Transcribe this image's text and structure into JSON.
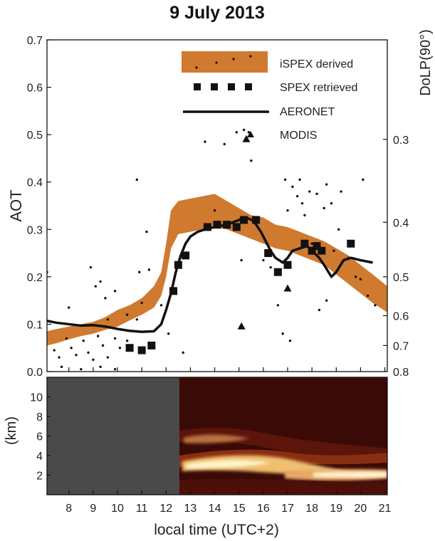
{
  "chart_data": {
    "title": "9 July 2013",
    "top_panel": {
      "type": "scatter",
      "xlim": [
        7.1,
        21.1
      ],
      "ylim": [
        0.0,
        0.7
      ],
      "ylabel_left": "AOT",
      "ylabel_right": "DoLP(90°)",
      "left_ticks": [
        0.0,
        0.1,
        0.2,
        0.3,
        0.4,
        0.5,
        0.6,
        0.7
      ],
      "left_tick_labels": [
        "0.0",
        "0.1",
        "0.2",
        "0.3",
        "0.4",
        "0.5",
        "0.6",
        "0.7"
      ],
      "right_ticks": [
        {
          "label": "0.3",
          "aot": 0.49
        },
        {
          "label": "0.4",
          "aot": 0.315
        },
        {
          "label": "0.5",
          "aot": 0.2
        },
        {
          "label": "0.6",
          "aot": 0.118
        },
        {
          "label": "0.7",
          "aot": 0.055
        },
        {
          "label": "0.8",
          "aot": 0.0
        }
      ],
      "legend": [
        {
          "label": "iSPEX derived",
          "style": "band"
        },
        {
          "label": "SPEX retrieved",
          "style": "square"
        },
        {
          "label": "AERONET",
          "style": "line"
        },
        {
          "label": "MODIS",
          "style": "triangle"
        }
      ],
      "legend_position": "top-right",
      "ispex_band": {
        "color": "#d07a30",
        "x": [
          7.1,
          7.5,
          8.0,
          8.5,
          9.0,
          9.5,
          10.0,
          10.5,
          11.0,
          11.5,
          11.8,
          12.0,
          12.2,
          12.5,
          13.0,
          13.5,
          14.0,
          14.5,
          15.0,
          15.5,
          16.0,
          16.5,
          17.0,
          17.5,
          18.0,
          18.5,
          19.0,
          19.5,
          20.0,
          20.5,
          21.1
        ],
        "upper": [
          0.085,
          0.09,
          0.095,
          0.1,
          0.105,
          0.115,
          0.13,
          0.14,
          0.155,
          0.18,
          0.21,
          0.27,
          0.34,
          0.36,
          0.365,
          0.37,
          0.375,
          0.36,
          0.345,
          0.33,
          0.325,
          0.31,
          0.305,
          0.295,
          0.285,
          0.275,
          0.26,
          0.245,
          0.225,
          0.205,
          0.18
        ],
        "lower": [
          0.055,
          0.06,
          0.068,
          0.075,
          0.08,
          0.088,
          0.095,
          0.108,
          0.12,
          0.135,
          0.16,
          0.2,
          0.26,
          0.29,
          0.295,
          0.3,
          0.305,
          0.3,
          0.29,
          0.28,
          0.27,
          0.26,
          0.255,
          0.245,
          0.235,
          0.225,
          0.205,
          0.185,
          0.165,
          0.145,
          0.125
        ]
      },
      "ispex_points": [
        [
          7.4,
          0.045
        ],
        [
          7.6,
          0.03
        ],
        [
          7.9,
          0.07
        ],
        [
          8.1,
          0.05
        ],
        [
          8.3,
          0.035
        ],
        [
          8.6,
          0.065
        ],
        [
          8.8,
          0.04
        ],
        [
          9.0,
          0.025
        ],
        [
          9.2,
          0.075
        ],
        [
          9.4,
          0.055
        ],
        [
          9.6,
          0.03
        ],
        [
          9.9,
          0.07
        ],
        [
          10.1,
          0.05
        ],
        [
          10.4,
          0.065
        ],
        [
          7.7,
          0.01
        ],
        [
          8.5,
          0.005
        ],
        [
          9.3,
          0.01
        ],
        [
          9.9,
          0.005
        ],
        [
          8.9,
          0.22
        ],
        [
          9.3,
          0.19
        ],
        [
          9.5,
          0.155
        ],
        [
          9.9,
          0.17
        ],
        [
          10.4,
          0.12
        ],
        [
          9.6,
          0.11
        ],
        [
          10.8,
          0.11
        ],
        [
          11.0,
          0.145
        ],
        [
          7.1,
          0.21
        ],
        [
          8.0,
          0.135
        ],
        [
          9.1,
          0.18
        ],
        [
          10.8,
          0.405
        ],
        [
          11.2,
          0.295
        ],
        [
          11.8,
          0.14
        ],
        [
          10.9,
          0.21
        ],
        [
          11.3,
          0.215
        ],
        [
          12.1,
          0.08
        ],
        [
          12.7,
          0.04
        ],
        [
          13.6,
          0.485
        ],
        [
          14.4,
          0.48
        ],
        [
          14.9,
          0.505
        ],
        [
          15.2,
          0.51
        ],
        [
          15.4,
          0.505
        ],
        [
          15.5,
          0.445
        ],
        [
          14.0,
          0.34
        ],
        [
          16.9,
          0.405
        ],
        [
          17.2,
          0.39
        ],
        [
          17.5,
          0.405
        ],
        [
          17.4,
          0.37
        ],
        [
          17.0,
          0.34
        ],
        [
          17.6,
          0.355
        ],
        [
          17.9,
          0.38
        ],
        [
          18.2,
          0.375
        ],
        [
          18.5,
          0.345
        ],
        [
          18.8,
          0.355
        ],
        [
          19.2,
          0.38
        ],
        [
          18.6,
          0.395
        ],
        [
          18.9,
          0.255
        ],
        [
          19.5,
          0.24
        ],
        [
          19.8,
          0.2
        ],
        [
          20.0,
          0.195
        ],
        [
          20.3,
          0.16
        ],
        [
          20.6,
          0.14
        ],
        [
          20.1,
          0.405
        ],
        [
          16.8,
          0.08
        ],
        [
          17.1,
          0.065
        ],
        [
          16.6,
          0.14
        ],
        [
          16.3,
          0.22
        ],
        [
          15.1,
          0.235
        ],
        [
          18.0,
          0.27
        ],
        [
          18.6,
          0.15
        ],
        [
          18.3,
          0.13
        ],
        [
          17.7,
          0.33
        ],
        [
          19.1,
          0.3
        ],
        [
          16.0,
          0.235
        ]
      ],
      "spex_points": [
        [
          10.5,
          0.05
        ],
        [
          11.0,
          0.045
        ],
        [
          11.4,
          0.055
        ],
        [
          12.3,
          0.17
        ],
        [
          12.5,
          0.225
        ],
        [
          12.8,
          0.245
        ],
        [
          13.7,
          0.305
        ],
        [
          14.1,
          0.31
        ],
        [
          14.5,
          0.31
        ],
        [
          14.9,
          0.305
        ],
        [
          15.2,
          0.32
        ],
        [
          15.7,
          0.32
        ],
        [
          16.2,
          0.25
        ],
        [
          16.6,
          0.21
        ],
        [
          17.0,
          0.225
        ],
        [
          17.7,
          0.27
        ],
        [
          18.0,
          0.255
        ],
        [
          18.2,
          0.265
        ],
        [
          18.4,
          0.255
        ],
        [
          19.6,
          0.27
        ]
      ],
      "aeronet": {
        "x": [
          7.1,
          7.5,
          8.0,
          8.5,
          9.0,
          9.5,
          10.0,
          10.5,
          11.0,
          11.5,
          11.8,
          12.0,
          12.2,
          12.4,
          12.6,
          12.8,
          13.0,
          13.3,
          13.6,
          14.0,
          14.5,
          15.0,
          15.3,
          15.6,
          15.9,
          16.1,
          16.3,
          16.5,
          16.8,
          17.0,
          17.2,
          17.5,
          17.8,
          18.1,
          18.3,
          18.5,
          18.8,
          19.0,
          19.3,
          19.6,
          20.0,
          20.5
        ],
        "y": [
          0.107,
          0.103,
          0.1,
          0.097,
          0.098,
          0.095,
          0.09,
          0.086,
          0.084,
          0.085,
          0.1,
          0.13,
          0.165,
          0.21,
          0.245,
          0.27,
          0.285,
          0.295,
          0.3,
          0.305,
          0.31,
          0.32,
          0.325,
          0.318,
          0.295,
          0.275,
          0.255,
          0.24,
          0.23,
          0.24,
          0.255,
          0.26,
          0.265,
          0.25,
          0.24,
          0.225,
          0.2,
          0.21,
          0.235,
          0.24,
          0.235,
          0.23
        ]
      },
      "modis_points": [
        [
          15.3,
          0.49
        ],
        [
          15.1,
          0.095
        ],
        [
          17.0,
          0.175
        ]
      ]
    },
    "bottom_panel": {
      "type": "heatmap",
      "ylabel": "(km)",
      "ylim": [
        0,
        12
      ],
      "y_ticks": [
        2,
        4,
        6,
        8,
        10
      ],
      "y_tick_labels": [
        "2",
        "4",
        "6",
        "8",
        "10"
      ],
      "no_data_until_hour": 12.5,
      "no_data_color": "#4a4a4a",
      "background_color": "#3a0a06"
    },
    "x_ticks": [
      8,
      9,
      10,
      11,
      12,
      13,
      14,
      15,
      16,
      17,
      18,
      19,
      20,
      21
    ],
    "x_tick_labels": [
      "8",
      "9",
      "10",
      "11",
      "12",
      "13",
      "14",
      "15",
      "16",
      "17",
      "18",
      "19",
      "20",
      "21"
    ],
    "xlabel": "local time (UTC+2)"
  }
}
